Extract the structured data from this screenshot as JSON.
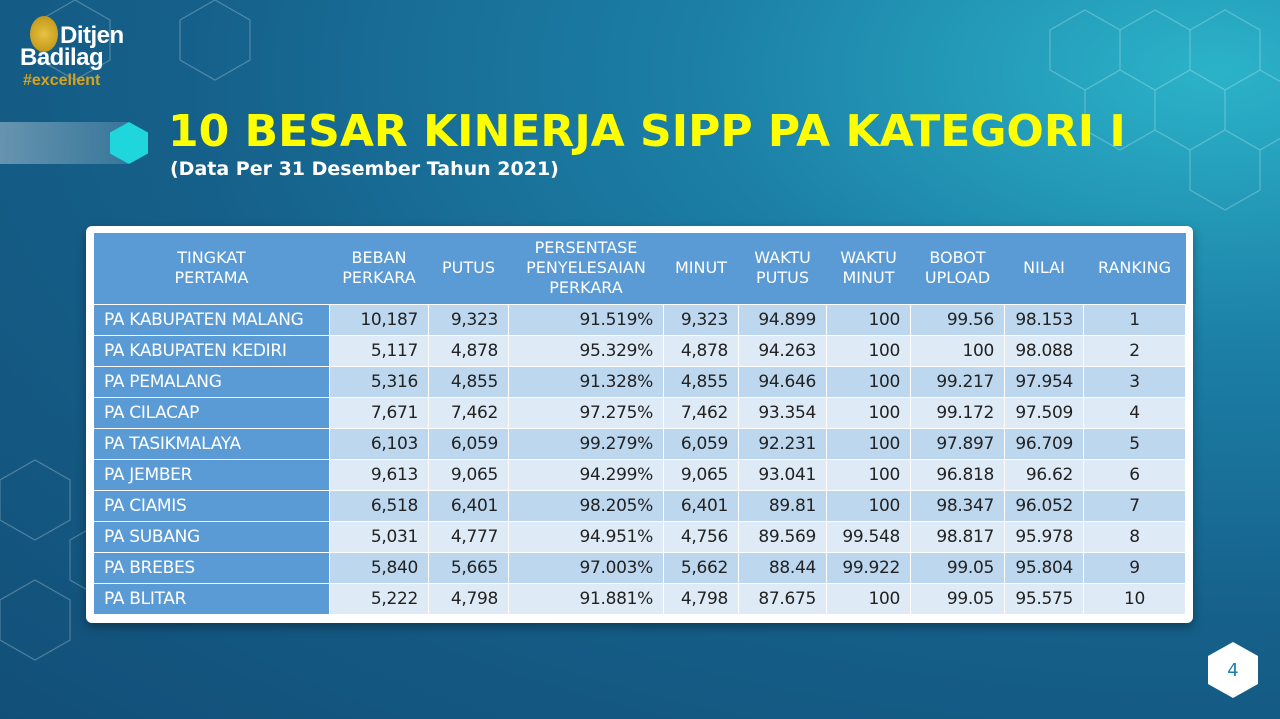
{
  "logo": {
    "line1": "Ditjen",
    "line2": "Badilag",
    "tag": "#excellent"
  },
  "title": "10 BESAR KINERJA SIPP PA KATEGORI I",
  "subtitle": "(Data Per 31 Desember Tahun 2021)",
  "table": {
    "headers": [
      "TINGKAT\nPERTAMA",
      "BEBAN\nPERKARA",
      "PUTUS",
      "PERSENTASE\nPENYELESAIAN\nPERKARA",
      "MINUT",
      "WAKTU\nPUTUS",
      "WAKTU\nMINUT",
      "BOBOT\nUPLOAD",
      "NILAI",
      "RANKING"
    ],
    "rows": [
      [
        "PA KABUPATEN MALANG",
        "10,187",
        "9,323",
        "91.519%",
        "9,323",
        "94.899",
        "100",
        "99.56",
        "98.153",
        "1"
      ],
      [
        "PA KABUPATEN KEDIRI",
        "5,117",
        "4,878",
        "95.329%",
        "4,878",
        "94.263",
        "100",
        "100",
        "98.088",
        "2"
      ],
      [
        "PA PEMALANG",
        "5,316",
        "4,855",
        "91.328%",
        "4,855",
        "94.646",
        "100",
        "99.217",
        "97.954",
        "3"
      ],
      [
        "PA CILACAP",
        "7,671",
        "7,462",
        "97.275%",
        "7,462",
        "93.354",
        "100",
        "99.172",
        "97.509",
        "4"
      ],
      [
        "PA TASIKMALAYA",
        "6,103",
        "6,059",
        "99.279%",
        "6,059",
        "92.231",
        "100",
        "97.897",
        "96.709",
        "5"
      ],
      [
        "PA JEMBER",
        "9,613",
        "9,065",
        "94.299%",
        "9,065",
        "93.041",
        "100",
        "96.818",
        "96.62",
        "6"
      ],
      [
        "PA CIAMIS",
        "6,518",
        "6,401",
        "98.205%",
        "6,401",
        "89.81",
        "100",
        "98.347",
        "96.052",
        "7"
      ],
      [
        "PA SUBANG",
        "5,031",
        "4,777",
        "94.951%",
        "4,756",
        "89.569",
        "99.548",
        "98.817",
        "95.978",
        "8"
      ],
      [
        "PA BREBES",
        "5,840",
        "5,665",
        "97.003%",
        "5,662",
        "88.44",
        "99.922",
        "99.05",
        "95.804",
        "9"
      ],
      [
        "PA BLITAR",
        "5,222",
        "4,798",
        "91.881%",
        "4,798",
        "87.675",
        "100",
        "99.05",
        "95.575",
        "10"
      ]
    ]
  },
  "page_number": "4"
}
